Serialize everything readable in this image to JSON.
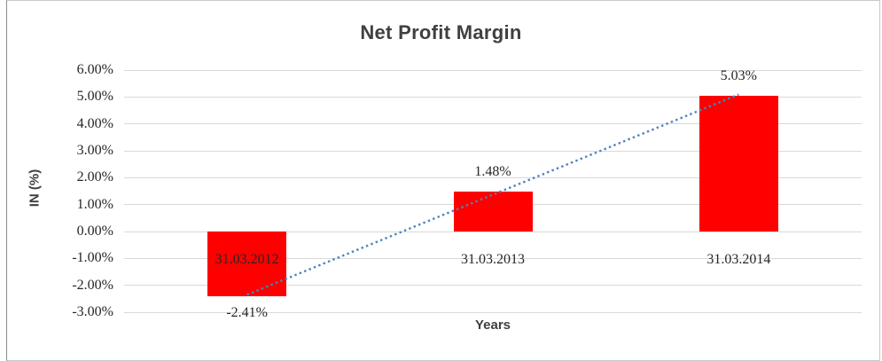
{
  "chart_data": {
    "type": "bar",
    "title": "Net Profit Margin",
    "xlabel": "Years",
    "ylabel": "IN (%)",
    "categories": [
      "31.03.2012",
      "31.03.2013",
      "31.03.2014"
    ],
    "values": [
      -2.41,
      1.48,
      5.03
    ],
    "data_labels": [
      "-2.41%",
      "1.48%",
      "5.03%"
    ],
    "ylim": [
      -3,
      6
    ],
    "y_tick_labels": [
      "6.00%",
      "5.00%",
      "4.00%",
      "3.00%",
      "2.00%",
      "1.00%",
      "0.00%",
      "-1.00%",
      "-2.00%",
      "-3.00%"
    ],
    "grid": true,
    "legend": false,
    "bar_color": "#FF0000",
    "gridline_color": "#D9D9D9",
    "trendline": {
      "type": "linear",
      "style": "dotted",
      "color": "#4E81BD",
      "start_value": -2.35,
      "end_value": 5.09
    }
  }
}
